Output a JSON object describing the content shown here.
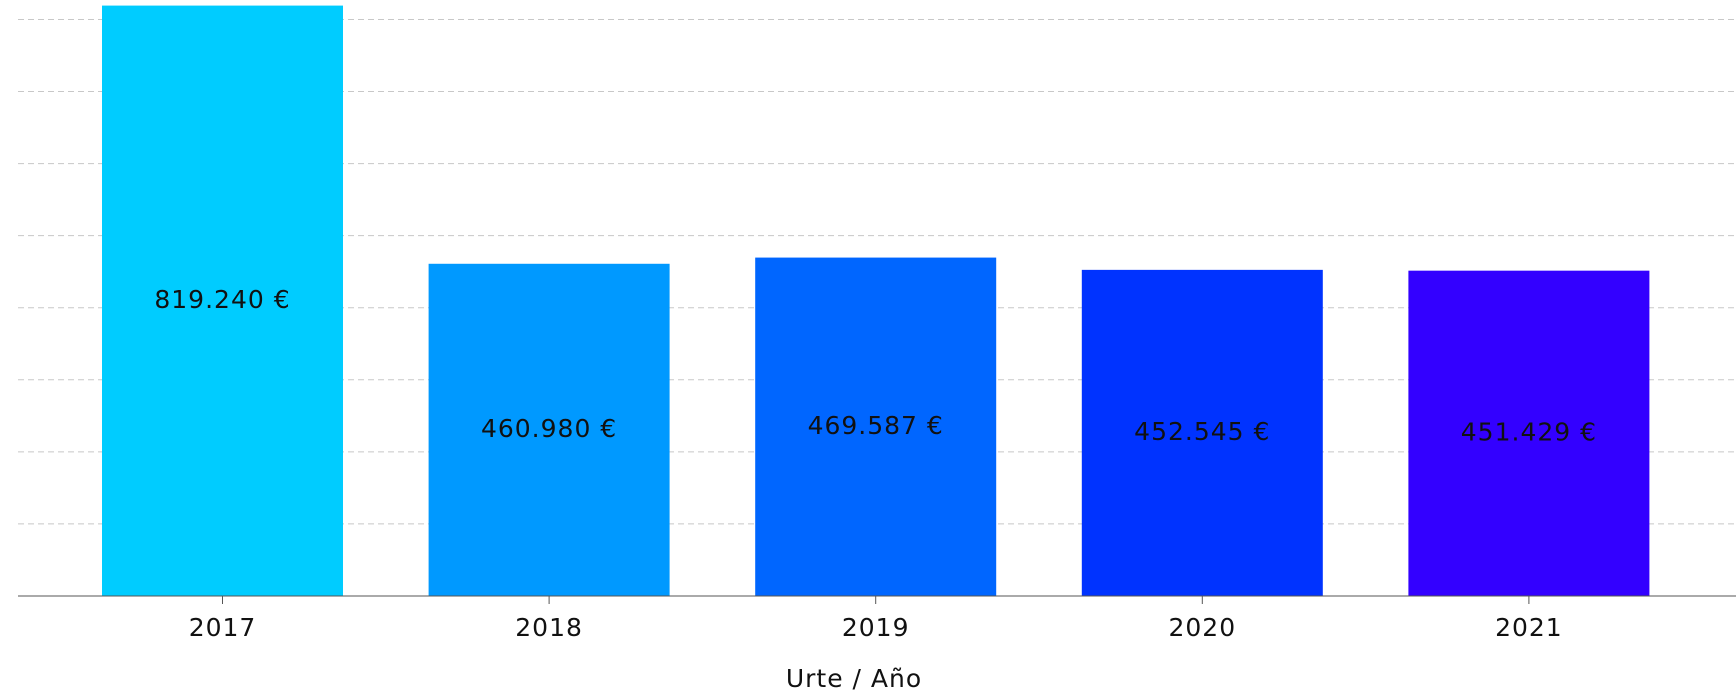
{
  "chart_data": {
    "type": "bar",
    "x_label": "Urte / Año",
    "categories": [
      "2017",
      "2018",
      "2019",
      "2020",
      "2021"
    ],
    "values": [
      819240,
      460980,
      469587,
      452545,
      451429
    ],
    "value_labels": [
      "819.240 €",
      "460.980 €",
      "469.587 €",
      "452.545 €",
      "451.429 €"
    ],
    "colors": [
      "#00ccff",
      "#0099ff",
      "#0066ff",
      "#0033ff",
      "#3300ff"
    ],
    "ylim": [
      0,
      827000
    ],
    "yticks": [
      0,
      100000,
      200000,
      300000,
      400000,
      500000,
      600000,
      700000,
      800000
    ],
    "grid": true
  }
}
